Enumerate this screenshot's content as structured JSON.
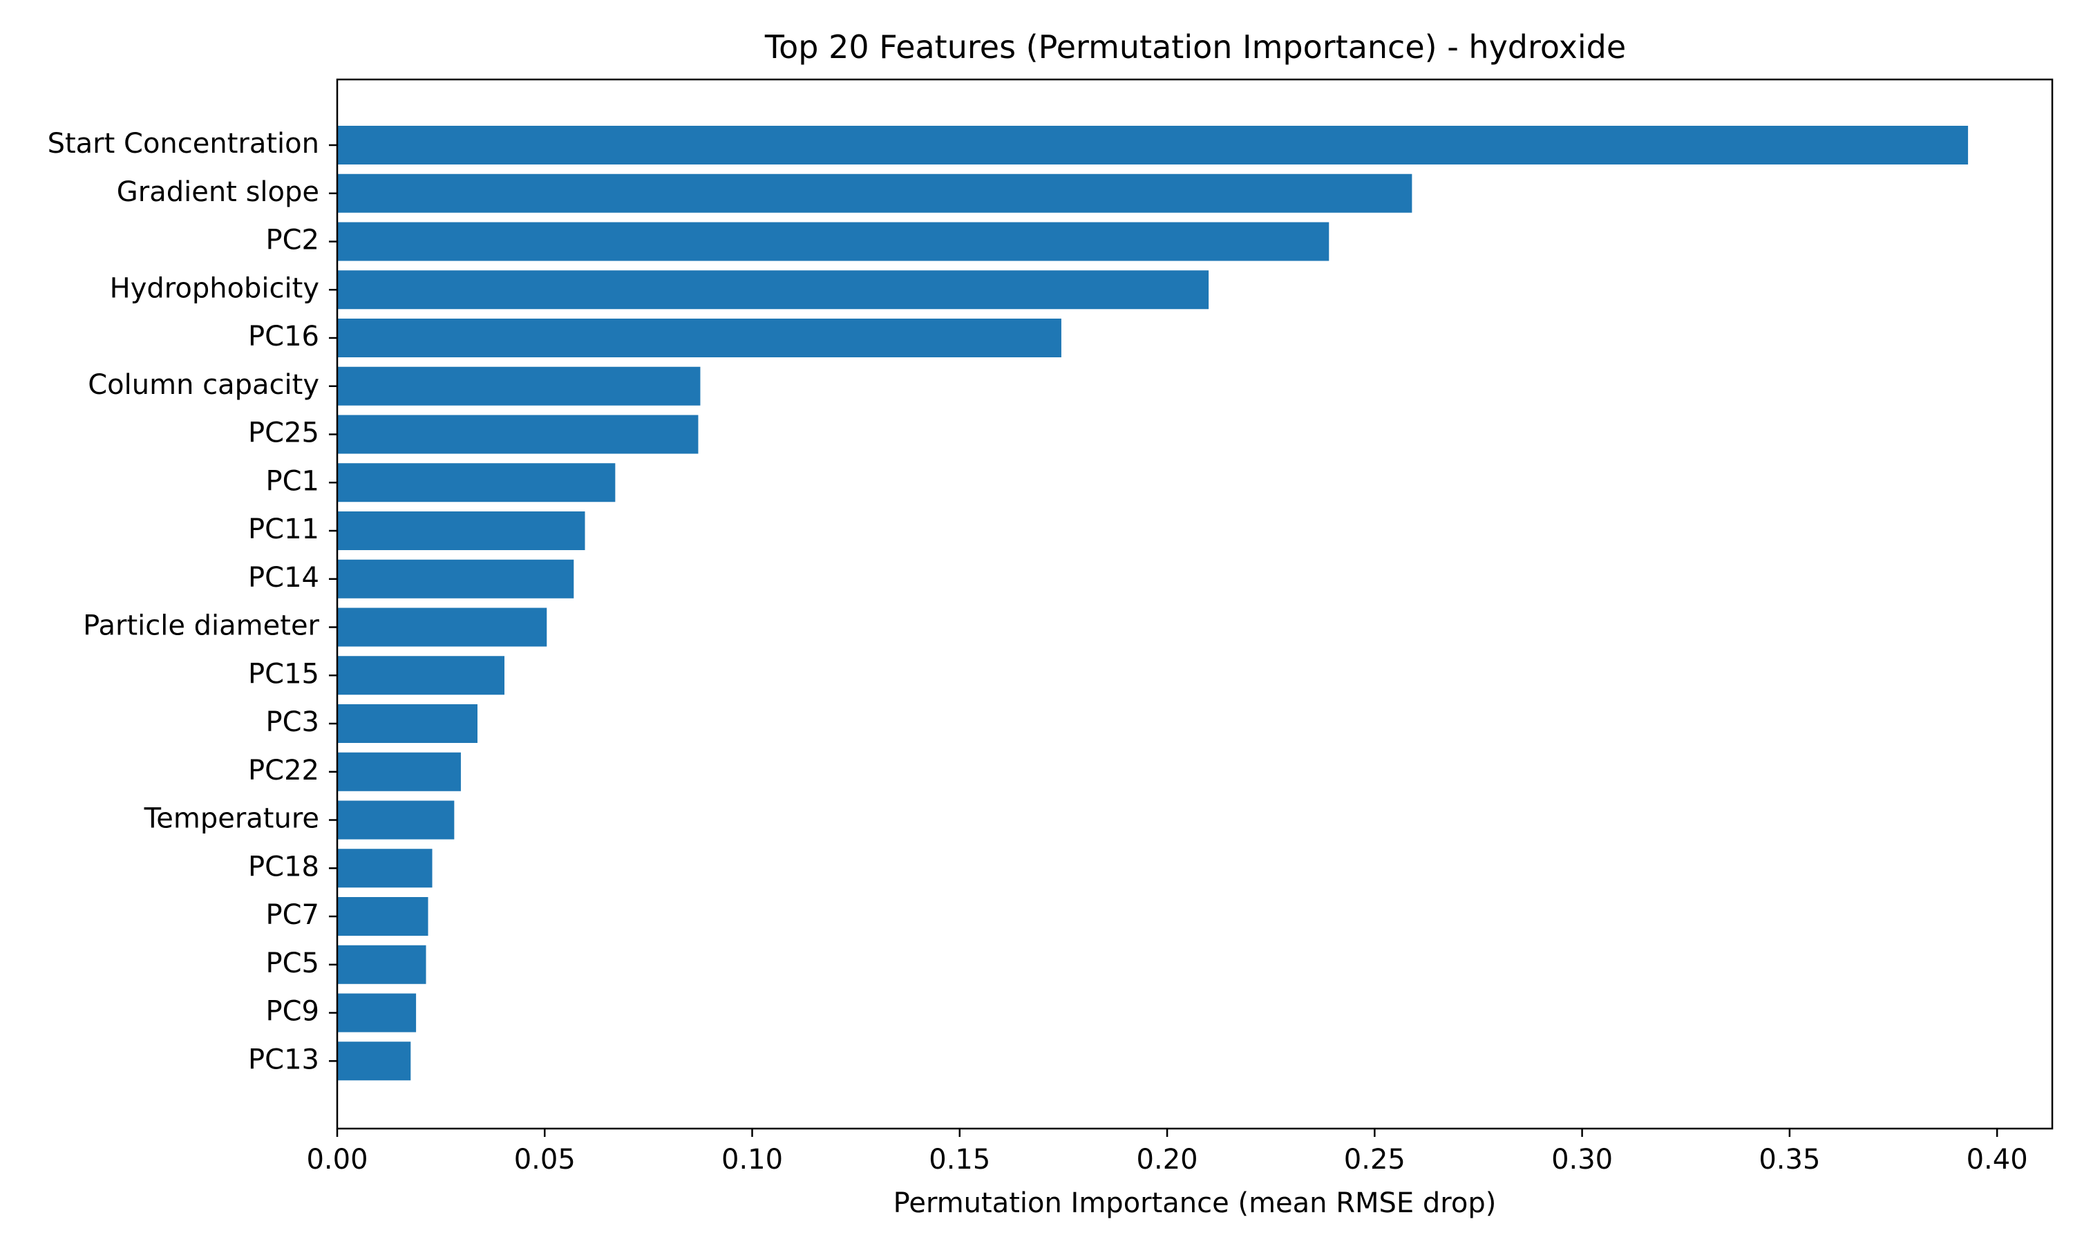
{
  "chart_data": {
    "type": "bar",
    "orientation": "horizontal",
    "title": "Top 20 Features (Permutation Importance) - hydroxide",
    "xlabel": "Permutation Importance (mean RMSE drop)",
    "ylabel": "",
    "xlim": [
      0,
      0.4133
    ],
    "xticks": [
      0.0,
      0.05,
      0.1,
      0.15,
      0.2,
      0.25,
      0.3,
      0.35,
      0.4
    ],
    "xtick_labels": [
      "0.00",
      "0.05",
      "0.10",
      "0.15",
      "0.20",
      "0.25",
      "0.30",
      "0.35",
      "0.40"
    ],
    "grid": false,
    "bar_color": "#1f77b4",
    "categories": [
      "Start Concentration",
      "Gradient slope",
      "PC2",
      "Hydrophobicity",
      "PC16",
      "Column capacity",
      "PC25",
      "PC1",
      "PC11",
      "PC14",
      "Particle diameter",
      "PC15",
      "PC3",
      "PC22",
      "Temperature",
      "PC18",
      "PC7",
      "PC5",
      "PC9",
      "PC13"
    ],
    "values": [
      0.393,
      0.259,
      0.239,
      0.21,
      0.1745,
      0.0875,
      0.087,
      0.067,
      0.0597,
      0.057,
      0.0505,
      0.0403,
      0.0338,
      0.0298,
      0.0282,
      0.0229,
      0.0219,
      0.0214,
      0.019,
      0.0177
    ]
  }
}
